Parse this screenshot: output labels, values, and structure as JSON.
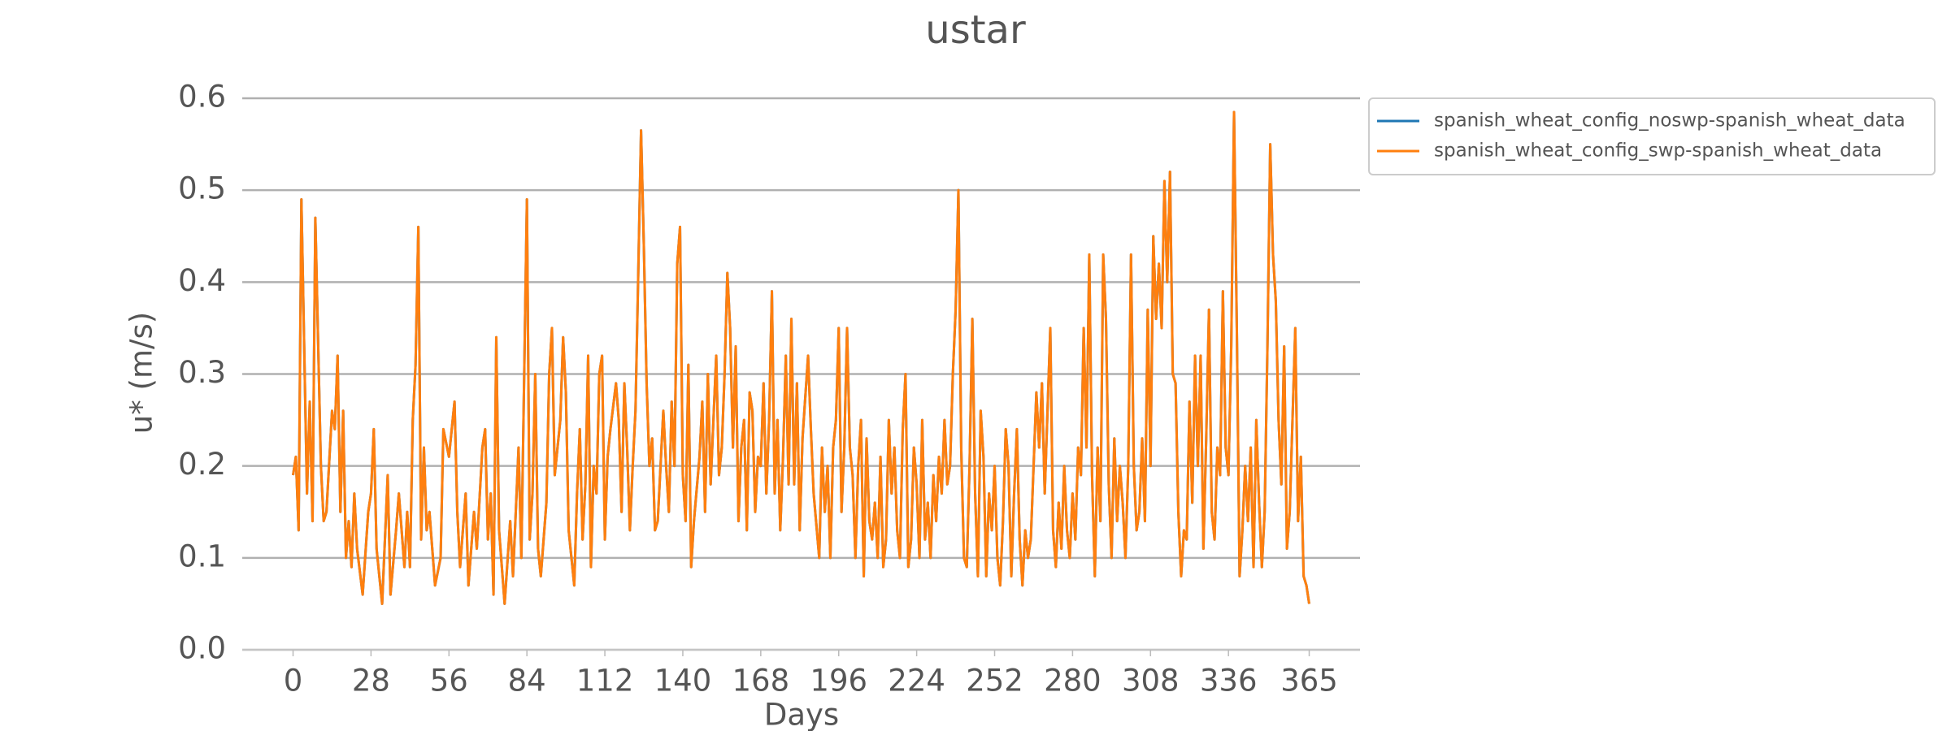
{
  "chart_data": {
    "type": "line",
    "title": "ustar",
    "xlabel": "Days",
    "ylabel": "u* (m/s)",
    "xlim": [
      -18.25,
      383.25
    ],
    "ylim": [
      0,
      0.6
    ],
    "xticks": [
      0,
      28,
      56,
      84,
      112,
      140,
      168,
      196,
      224,
      252,
      280,
      308,
      336,
      365
    ],
    "yticks": [
      {
        "value": 0,
        "label": "0.0"
      },
      0.1,
      0.2,
      0.3,
      0.4,
      0.5,
      0.6
    ],
    "grid": true,
    "legend": "outside upper right",
    "x": [
      0,
      1,
      2,
      3,
      5,
      6,
      7,
      8,
      10,
      11,
      12,
      14,
      15,
      16,
      17,
      18,
      19,
      20,
      21,
      22,
      23,
      25,
      27,
      28,
      29,
      30,
      32,
      33,
      34,
      35,
      37,
      38,
      40,
      41,
      42,
      43,
      44,
      45,
      46,
      47,
      48,
      49,
      51,
      53,
      54,
      56,
      58,
      59,
      60,
      62,
      63,
      65,
      66,
      68,
      69,
      70,
      71,
      72,
      73,
      74,
      75,
      76,
      78,
      79,
      81,
      82,
      84,
      85,
      86,
      87,
      88,
      89,
      91,
      92,
      93,
      94,
      96,
      97,
      98,
      99,
      101,
      102,
      103,
      104,
      105,
      106,
      107,
      108,
      109,
      110,
      111,
      112,
      113,
      114,
      116,
      117,
      118,
      119,
      120,
      121,
      122,
      123,
      124,
      125,
      126,
      127,
      128,
      129,
      130,
      131,
      133,
      134,
      135,
      136,
      137,
      138,
      139,
      140,
      141,
      142,
      143,
      144,
      146,
      147,
      148,
      149,
      150,
      151,
      152,
      153,
      154,
      155,
      156,
      157,
      158,
      159,
      160,
      161,
      162,
      163,
      164,
      165,
      166,
      167,
      168,
      169,
      170,
      171,
      172,
      173,
      174,
      175,
      176,
      177,
      178,
      179,
      180,
      181,
      182,
      183,
      185,
      186,
      187,
      189,
      190,
      191,
      192,
      193,
      194,
      195,
      196,
      197,
      198,
      199,
      200,
      201,
      202,
      203,
      204,
      205,
      206,
      207,
      208,
      209,
      210,
      211,
      212,
      213,
      214,
      215,
      216,
      217,
      218,
      219,
      220,
      221,
      222,
      223,
      224,
      225,
      226,
      227,
      228,
      229,
      230,
      231,
      232,
      233,
      234,
      235,
      236,
      237,
      238,
      239,
      240,
      241,
      242,
      243,
      244,
      245,
      246,
      247,
      248,
      249,
      250,
      251,
      252,
      253,
      254,
      255,
      256,
      257,
      258,
      259,
      260,
      261,
      262,
      263,
      264,
      265,
      266,
      267,
      268,
      269,
      270,
      271,
      272,
      273,
      274,
      275,
      276,
      277,
      278,
      279,
      280,
      281,
      282,
      283,
      284,
      285,
      286,
      287,
      288,
      289,
      290,
      291,
      292,
      293,
      294,
      295,
      296,
      297,
      298,
      299,
      300,
      301,
      302,
      303,
      304,
      305,
      306,
      307,
      308,
      309,
      310,
      311,
      312,
      313,
      314,
      315,
      316,
      317,
      318,
      319,
      320,
      321,
      322,
      323,
      324,
      325,
      326,
      327,
      328,
      329,
      330,
      331,
      332,
      333,
      334,
      335,
      336,
      337,
      338,
      339,
      340,
      341,
      342,
      343,
      344,
      345,
      346,
      347,
      348,
      349,
      350,
      351,
      352,
      353,
      354,
      355,
      356,
      357,
      358,
      359,
      360,
      361,
      362,
      363,
      364,
      365
    ],
    "series": [
      {
        "name": "spanish_wheat_config_noswp-spanish_wheat_data",
        "color": "#1f77b4",
        "values": [
          0.19,
          0.21,
          0.13,
          0.49,
          0.17,
          0.27,
          0.14,
          0.47,
          0.2,
          0.14,
          0.15,
          0.26,
          0.24,
          0.32,
          0.15,
          0.26,
          0.1,
          0.14,
          0.09,
          0.17,
          0.11,
          0.06,
          0.15,
          0.17,
          0.24,
          0.11,
          0.05,
          0.12,
          0.19,
          0.06,
          0.13,
          0.17,
          0.09,
          0.15,
          0.09,
          0.25,
          0.31,
          0.46,
          0.12,
          0.22,
          0.13,
          0.15,
          0.07,
          0.1,
          0.24,
          0.21,
          0.27,
          0.15,
          0.09,
          0.17,
          0.07,
          0.15,
          0.11,
          0.22,
          0.24,
          0.12,
          0.17,
          0.06,
          0.34,
          0.13,
          0.09,
          0.05,
          0.14,
          0.08,
          0.22,
          0.1,
          0.49,
          0.12,
          0.17,
          0.3,
          0.11,
          0.08,
          0.16,
          0.3,
          0.35,
          0.19,
          0.25,
          0.34,
          0.28,
          0.13,
          0.07,
          0.17,
          0.24,
          0.12,
          0.18,
          0.32,
          0.09,
          0.2,
          0.17,
          0.3,
          0.32,
          0.12,
          0.21,
          0.24,
          0.29,
          0.25,
          0.15,
          0.29,
          0.22,
          0.13,
          0.2,
          0.26,
          0.41,
          0.565,
          0.44,
          0.29,
          0.2,
          0.23,
          0.13,
          0.14,
          0.26,
          0.2,
          0.15,
          0.27,
          0.2,
          0.42,
          0.46,
          0.19,
          0.14,
          0.31,
          0.09,
          0.14,
          0.21,
          0.27,
          0.15,
          0.3,
          0.18,
          0.25,
          0.32,
          0.19,
          0.22,
          0.3,
          0.41,
          0.35,
          0.22,
          0.33,
          0.14,
          0.22,
          0.25,
          0.13,
          0.28,
          0.26,
          0.15,
          0.21,
          0.2,
          0.29,
          0.17,
          0.25,
          0.39,
          0.17,
          0.25,
          0.13,
          0.21,
          0.32,
          0.18,
          0.36,
          0.18,
          0.29,
          0.13,
          0.23,
          0.32,
          0.24,
          0.17,
          0.1,
          0.22,
          0.15,
          0.2,
          0.1,
          0.22,
          0.25,
          0.35,
          0.15,
          0.22,
          0.35,
          0.22,
          0.19,
          0.1,
          0.2,
          0.25,
          0.08,
          0.23,
          0.14,
          0.12,
          0.16,
          0.1,
          0.21,
          0.09,
          0.12,
          0.25,
          0.17,
          0.22,
          0.13,
          0.1,
          0.24,
          0.3,
          0.09,
          0.12,
          0.22,
          0.18,
          0.1,
          0.25,
          0.12,
          0.16,
          0.1,
          0.19,
          0.14,
          0.21,
          0.17,
          0.25,
          0.18,
          0.2,
          0.3,
          0.37,
          0.5,
          0.22,
          0.1,
          0.09,
          0.2,
          0.36,
          0.17,
          0.08,
          0.26,
          0.21,
          0.08,
          0.17,
          0.13,
          0.2,
          0.1,
          0.07,
          0.14,
          0.24,
          0.2,
          0.08,
          0.17,
          0.24,
          0.12,
          0.07,
          0.13,
          0.1,
          0.12,
          0.2,
          0.28,
          0.22,
          0.29,
          0.17,
          0.26,
          0.35,
          0.13,
          0.09,
          0.16,
          0.11,
          0.2,
          0.13,
          0.1,
          0.17,
          0.12,
          0.22,
          0.19,
          0.35,
          0.22,
          0.43,
          0.19,
          0.08,
          0.22,
          0.14,
          0.43,
          0.36,
          0.18,
          0.1,
          0.23,
          0.14,
          0.2,
          0.16,
          0.1,
          0.2,
          0.43,
          0.2,
          0.13,
          0.15,
          0.23,
          0.14,
          0.37,
          0.2,
          0.45,
          0.36,
          0.42,
          0.35,
          0.51,
          0.4,
          0.52,
          0.3,
          0.29,
          0.15,
          0.08,
          0.13,
          0.12,
          0.27,
          0.16,
          0.32,
          0.2,
          0.32,
          0.11,
          0.23,
          0.37,
          0.15,
          0.12,
          0.22,
          0.19,
          0.39,
          0.22,
          0.19,
          0.33,
          0.585,
          0.35,
          0.08,
          0.13,
          0.2,
          0.14,
          0.22,
          0.09,
          0.25,
          0.16,
          0.09,
          0.15,
          0.33,
          0.55,
          0.43,
          0.38,
          0.25,
          0.18,
          0.33,
          0.11,
          0.15,
          0.25,
          0.35,
          0.14,
          0.21,
          0.08,
          0.07,
          0.05
        ]
      },
      {
        "name": "spanish_wheat_config_swp-spanish_wheat_data",
        "color": "#ff7f0e",
        "values": [
          0.19,
          0.21,
          0.13,
          0.49,
          0.17,
          0.27,
          0.14,
          0.47,
          0.2,
          0.14,
          0.15,
          0.26,
          0.24,
          0.32,
          0.15,
          0.26,
          0.1,
          0.14,
          0.09,
          0.17,
          0.11,
          0.06,
          0.15,
          0.17,
          0.24,
          0.11,
          0.05,
          0.12,
          0.19,
          0.06,
          0.13,
          0.17,
          0.09,
          0.15,
          0.09,
          0.25,
          0.31,
          0.46,
          0.12,
          0.22,
          0.13,
          0.15,
          0.07,
          0.1,
          0.24,
          0.21,
          0.27,
          0.15,
          0.09,
          0.17,
          0.07,
          0.15,
          0.11,
          0.22,
          0.24,
          0.12,
          0.17,
          0.06,
          0.34,
          0.13,
          0.09,
          0.05,
          0.14,
          0.08,
          0.22,
          0.1,
          0.49,
          0.12,
          0.17,
          0.3,
          0.11,
          0.08,
          0.16,
          0.3,
          0.35,
          0.19,
          0.25,
          0.34,
          0.28,
          0.13,
          0.07,
          0.17,
          0.24,
          0.12,
          0.18,
          0.32,
          0.09,
          0.2,
          0.17,
          0.3,
          0.32,
          0.12,
          0.21,
          0.24,
          0.29,
          0.25,
          0.15,
          0.29,
          0.22,
          0.13,
          0.2,
          0.26,
          0.41,
          0.565,
          0.44,
          0.29,
          0.2,
          0.23,
          0.13,
          0.14,
          0.26,
          0.2,
          0.15,
          0.27,
          0.2,
          0.42,
          0.46,
          0.19,
          0.14,
          0.31,
          0.09,
          0.14,
          0.21,
          0.27,
          0.15,
          0.3,
          0.18,
          0.25,
          0.32,
          0.19,
          0.22,
          0.3,
          0.41,
          0.35,
          0.22,
          0.33,
          0.14,
          0.22,
          0.25,
          0.13,
          0.28,
          0.26,
          0.15,
          0.21,
          0.2,
          0.29,
          0.17,
          0.25,
          0.39,
          0.17,
          0.25,
          0.13,
          0.21,
          0.32,
          0.18,
          0.36,
          0.18,
          0.29,
          0.13,
          0.23,
          0.32,
          0.24,
          0.17,
          0.1,
          0.22,
          0.15,
          0.2,
          0.1,
          0.22,
          0.25,
          0.35,
          0.15,
          0.22,
          0.35,
          0.22,
          0.19,
          0.1,
          0.2,
          0.25,
          0.08,
          0.23,
          0.14,
          0.12,
          0.16,
          0.1,
          0.21,
          0.09,
          0.12,
          0.25,
          0.17,
          0.22,
          0.13,
          0.1,
          0.24,
          0.3,
          0.09,
          0.12,
          0.22,
          0.18,
          0.1,
          0.25,
          0.12,
          0.16,
          0.1,
          0.19,
          0.14,
          0.21,
          0.17,
          0.25,
          0.18,
          0.2,
          0.3,
          0.37,
          0.5,
          0.22,
          0.1,
          0.09,
          0.2,
          0.36,
          0.17,
          0.08,
          0.26,
          0.21,
          0.08,
          0.17,
          0.13,
          0.2,
          0.1,
          0.07,
          0.14,
          0.24,
          0.2,
          0.08,
          0.17,
          0.24,
          0.12,
          0.07,
          0.13,
          0.1,
          0.12,
          0.2,
          0.28,
          0.22,
          0.29,
          0.17,
          0.26,
          0.35,
          0.13,
          0.09,
          0.16,
          0.11,
          0.2,
          0.13,
          0.1,
          0.17,
          0.12,
          0.22,
          0.19,
          0.35,
          0.22,
          0.43,
          0.19,
          0.08,
          0.22,
          0.14,
          0.43,
          0.36,
          0.18,
          0.1,
          0.23,
          0.14,
          0.2,
          0.16,
          0.1,
          0.2,
          0.43,
          0.2,
          0.13,
          0.15,
          0.23,
          0.14,
          0.37,
          0.2,
          0.45,
          0.36,
          0.42,
          0.35,
          0.51,
          0.4,
          0.52,
          0.3,
          0.29,
          0.15,
          0.08,
          0.13,
          0.12,
          0.27,
          0.16,
          0.32,
          0.2,
          0.32,
          0.11,
          0.23,
          0.37,
          0.15,
          0.12,
          0.22,
          0.19,
          0.39,
          0.22,
          0.19,
          0.33,
          0.585,
          0.35,
          0.08,
          0.13,
          0.2,
          0.14,
          0.22,
          0.09,
          0.25,
          0.16,
          0.09,
          0.15,
          0.33,
          0.55,
          0.43,
          0.38,
          0.25,
          0.18,
          0.33,
          0.11,
          0.15,
          0.25,
          0.35,
          0.14,
          0.21,
          0.08,
          0.07,
          0.05
        ]
      }
    ]
  }
}
